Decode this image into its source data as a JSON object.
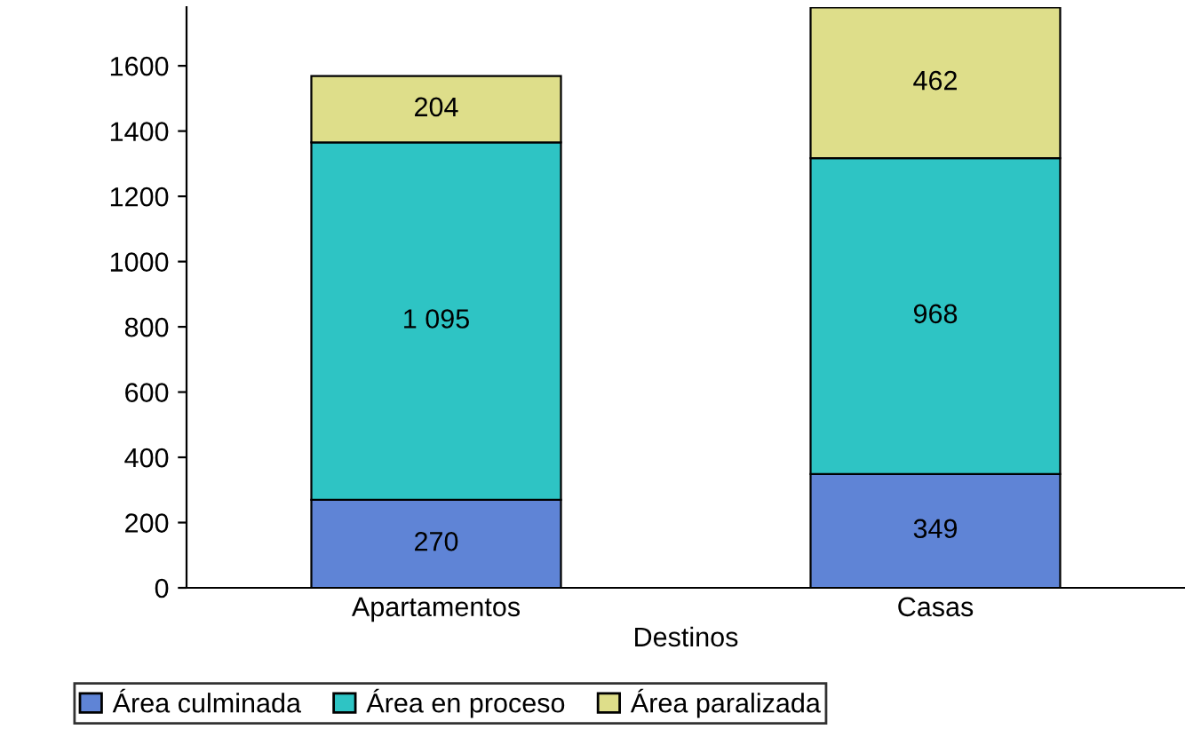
{
  "chart_data": {
    "type": "bar",
    "stacked": true,
    "xlabel": "Destinos",
    "categories": [
      "Apartamentos",
      "Casas"
    ],
    "series": [
      {
        "name": "Área culminada",
        "color": "#5f84d6",
        "values": [
          270,
          349
        ],
        "value_labels": [
          "270",
          "349"
        ]
      },
      {
        "name": "Área en proceso",
        "color": "#2ec4c4",
        "values": [
          1095,
          968
        ],
        "value_labels": [
          "1 095",
          "968"
        ]
      },
      {
        "name": "Área paralizada",
        "color": "#dede8a",
        "values": [
          204,
          462
        ],
        "value_labels": [
          "204",
          "462"
        ]
      }
    ],
    "ylim": [
      0,
      1780
    ],
    "yticks": [
      0,
      200,
      400,
      600,
      800,
      1000,
      1200,
      1400,
      1600
    ],
    "grid": false,
    "legend": "bottom"
  }
}
